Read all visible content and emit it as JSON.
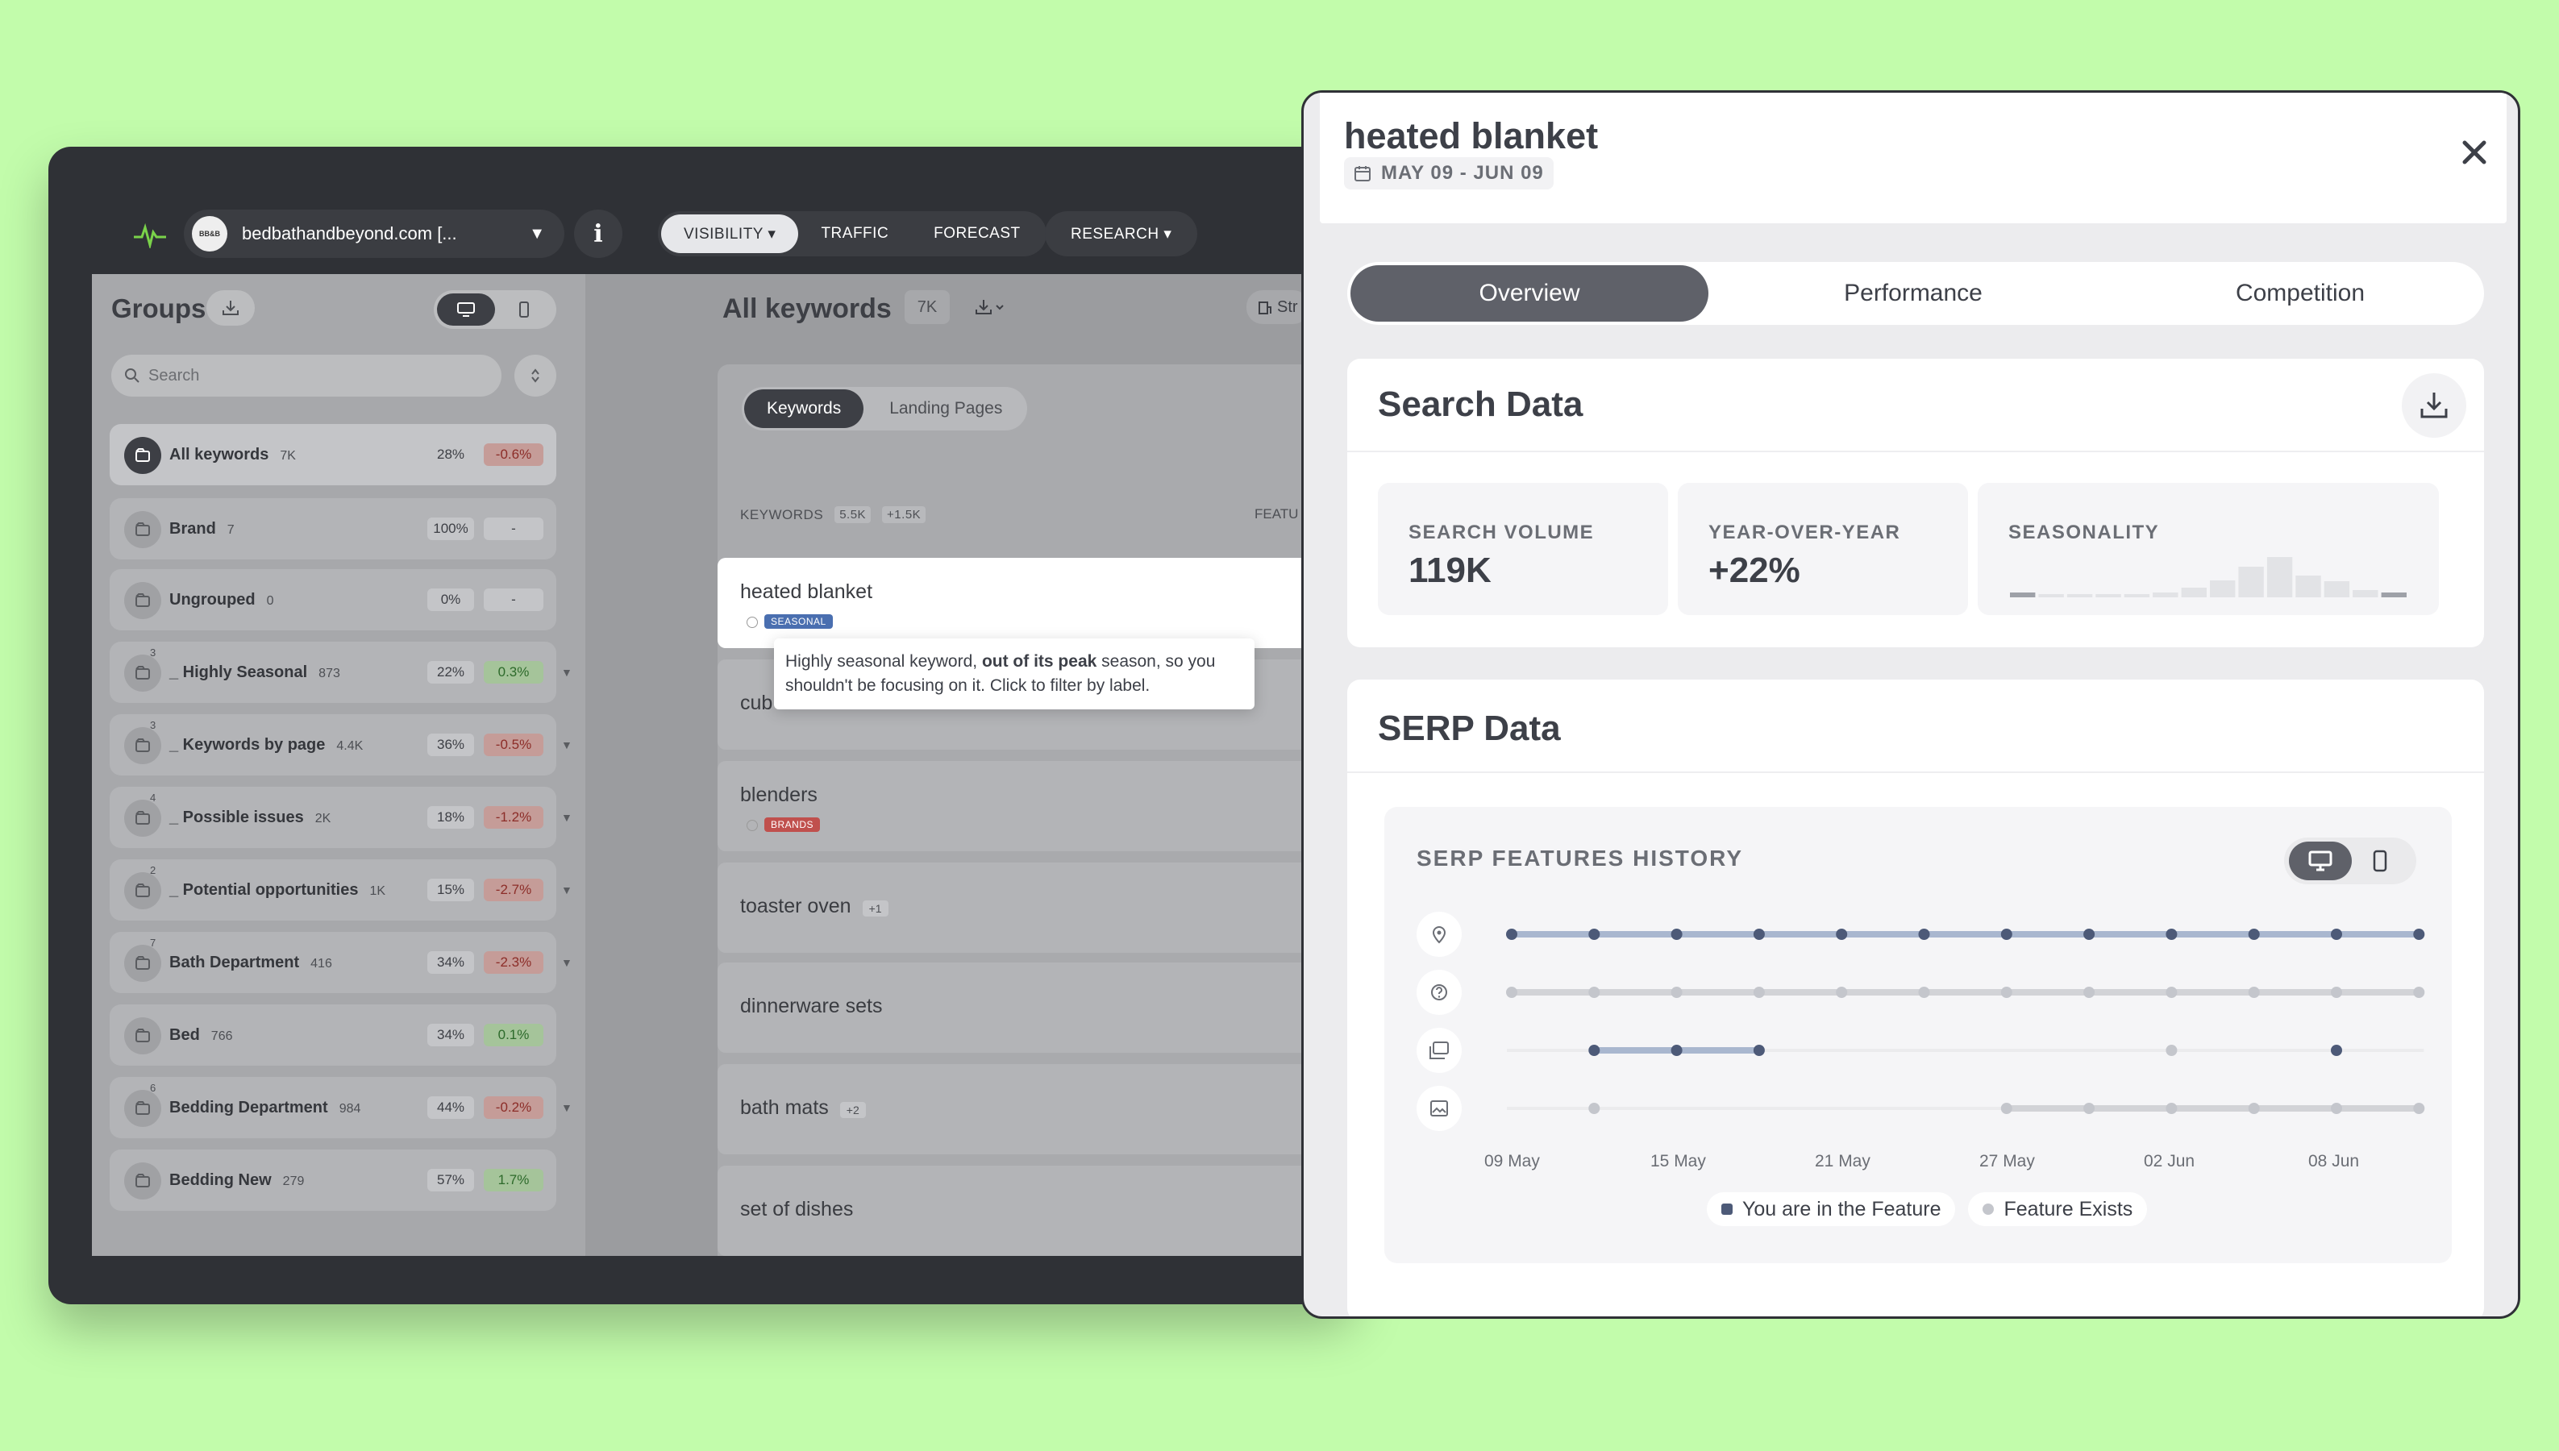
{
  "app": {
    "site": "bedbathandbeyond.com [...",
    "site_avatar": "BB&B",
    "info": "i",
    "nav": [
      {
        "label": "VISIBILITY ▾",
        "active": true
      },
      {
        "label": "TRAFFIC",
        "active": false
      },
      {
        "label": "FORECAST",
        "active": false
      },
      {
        "label": "RESEARCH ▾",
        "active": false
      }
    ]
  },
  "groups": {
    "title": "Groups",
    "search_placeholder": "Search",
    "items": [
      {
        "num": "",
        "name": "All keywords",
        "count": "7K",
        "pct": "28%",
        "change": "-0.6%",
        "trend": "neg",
        "expand": false,
        "selected": true,
        "icon": "layers-icon"
      },
      {
        "num": "",
        "name": "Brand",
        "count": "7",
        "pct": "100%",
        "change": "-",
        "trend": "none",
        "expand": false,
        "selected": false,
        "icon": "heart-icon"
      },
      {
        "num": "",
        "name": "Ungrouped",
        "count": "0",
        "pct": "0%",
        "change": "-",
        "trend": "none",
        "expand": false,
        "selected": false,
        "icon": "folder-icon"
      },
      {
        "num": "3",
        "name": "_ Highly Seasonal",
        "count": "873",
        "pct": "22%",
        "change": "0.3%",
        "trend": "pos",
        "expand": true,
        "selected": false,
        "icon": "folders-icon"
      },
      {
        "num": "3",
        "name": "_ Keywords by page",
        "count": "4.4K",
        "pct": "36%",
        "change": "-0.5%",
        "trend": "neg",
        "expand": true,
        "selected": false,
        "icon": "folders-icon"
      },
      {
        "num": "4",
        "name": "_ Possible issues",
        "count": "2K",
        "pct": "18%",
        "change": "-1.2%",
        "trend": "neg",
        "expand": true,
        "selected": false,
        "icon": "folders-icon"
      },
      {
        "num": "2",
        "name": "_ Potential opportunities",
        "count": "1K",
        "pct": "15%",
        "change": "-2.7%",
        "trend": "neg",
        "expand": true,
        "selected": false,
        "icon": "folders-icon"
      },
      {
        "num": "7",
        "name": "Bath Department",
        "count": "416",
        "pct": "34%",
        "change": "-2.3%",
        "trend": "neg",
        "expand": true,
        "selected": false,
        "icon": "folders-icon"
      },
      {
        "num": "",
        "name": "Bed",
        "count": "766",
        "pct": "34%",
        "change": "0.1%",
        "trend": "pos",
        "expand": false,
        "selected": false,
        "icon": "sparkle-icon"
      },
      {
        "num": "6",
        "name": "Bedding Department",
        "count": "984",
        "pct": "44%",
        "change": "-0.2%",
        "trend": "neg",
        "expand": true,
        "selected": false,
        "icon": "folders-icon"
      },
      {
        "num": "",
        "name": "Bedding New",
        "count": "279",
        "pct": "57%",
        "change": "1.7%",
        "trend": "pos",
        "expand": false,
        "selected": false,
        "icon": "folder-icon"
      }
    ]
  },
  "keywords": {
    "title": "All keywords",
    "count": "7K",
    "strategy_label": "Str",
    "tabs": [
      {
        "label": "Keywords",
        "active": true
      },
      {
        "label": "Landing Pages",
        "active": false
      }
    ],
    "header_label": "KEYWORDS",
    "header_count": "5.5K",
    "header_delta": "+1.5K",
    "features_header": "FEATU",
    "rows": [
      {
        "name": "heated blanket",
        "badge": "SEASONAL",
        "badge_color": "#4a6fb0",
        "plus": "",
        "highlight": true
      },
      {
        "name": "cub",
        "badge": "",
        "badge_color": "",
        "plus": "",
        "highlight": false
      },
      {
        "name": "blenders",
        "badge": "BRANDS",
        "badge_color": "#c0504d",
        "plus": "",
        "highlight": false
      },
      {
        "name": "toaster oven",
        "badge": "",
        "badge_color": "",
        "plus": "+1",
        "highlight": false
      },
      {
        "name": "dinnerware sets",
        "badge": "",
        "badge_color": "",
        "plus": "",
        "highlight": false
      },
      {
        "name": "bath mats",
        "badge": "",
        "badge_color": "",
        "plus": "+2",
        "highlight": false
      },
      {
        "name": "set of dishes",
        "badge": "",
        "badge_color": "",
        "plus": "",
        "highlight": false
      }
    ]
  },
  "tooltip": {
    "pre": "Highly seasonal keyword, ",
    "bold": "out of its peak",
    "post": " season, so you shouldn't be focusing on it. Click to filter by label."
  },
  "panel": {
    "title": "heated blanket",
    "date_range": "MAY 09 - JUN 09",
    "tabs": [
      {
        "label": "Overview",
        "active": true
      },
      {
        "label": "Performance",
        "active": false
      },
      {
        "label": "Competition",
        "active": false
      }
    ],
    "search_data": {
      "title": "Search Data",
      "search_volume_label": "SEARCH VOLUME",
      "search_volume": "119K",
      "yoy_label": "YEAR-OVER-YEAR",
      "yoy": "+22%",
      "seasonality_label": "SEASONALITY",
      "seasonality": [
        0.12,
        0.06,
        0.06,
        0.06,
        0.06,
        0.12,
        0.24,
        0.42,
        0.76,
        1.0,
        0.54,
        0.4,
        0.18,
        0.12
      ]
    },
    "serp_data": {
      "title": "SERP Data",
      "history_title": "SERP FEATURES HISTORY",
      "x_labels": [
        "09 May",
        "15 May",
        "21 May",
        "27 May",
        "02 Jun",
        "08 Jun"
      ],
      "features": [
        {
          "icon": "map-pin-icon",
          "states": [
            "in",
            "in",
            "in",
            "in",
            "in",
            "in",
            "in",
            "in",
            "in",
            "in",
            "in",
            "in"
          ]
        },
        {
          "icon": "question-icon",
          "states": [
            "ex",
            "ex",
            "ex",
            "ex",
            "ex",
            "ex",
            "ex",
            "ex",
            "ex",
            "ex",
            "ex",
            "ex"
          ]
        },
        {
          "icon": "image-pack-icon",
          "states": [
            "none",
            "in",
            "in",
            "in",
            "none",
            "none",
            "none",
            "none",
            "ex",
            "none",
            "in",
            "none"
          ]
        },
        {
          "icon": "image-icon",
          "states": [
            "none",
            "ex",
            "none",
            "none",
            "none",
            "none",
            "ex",
            "ex",
            "ex",
            "ex",
            "ex",
            "ex"
          ]
        }
      ],
      "legend": [
        {
          "label": "You are in the Feature",
          "color": "#4d5a78"
        },
        {
          "label": "Feature Exists",
          "color": "#c4c6cc"
        }
      ]
    }
  }
}
